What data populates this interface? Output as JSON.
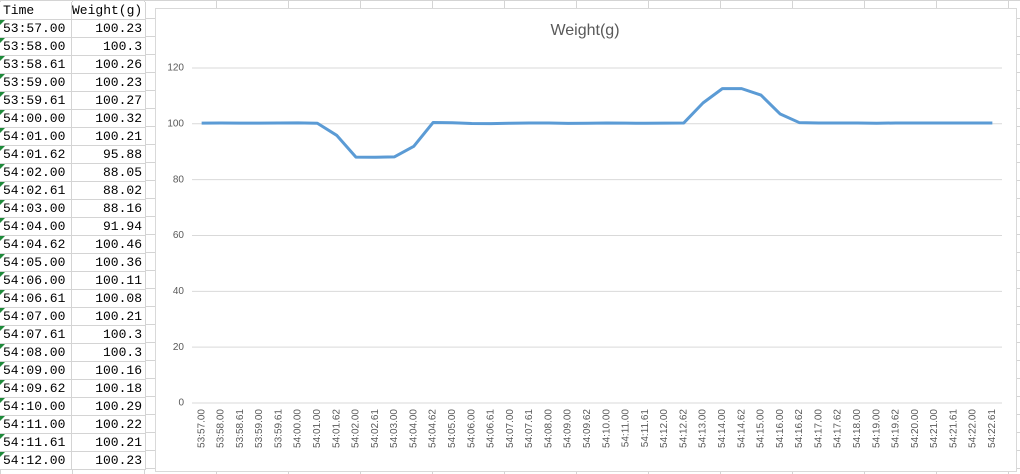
{
  "table": {
    "columns": [
      "Time",
      "Weight(g)"
    ],
    "rows": [
      [
        "53:57.00",
        "100.23"
      ],
      [
        "53:58.00",
        "100.3"
      ],
      [
        "53:58.61",
        "100.26"
      ],
      [
        "53:59.00",
        "100.23"
      ],
      [
        "53:59.61",
        "100.27"
      ],
      [
        "54:00.00",
        "100.32"
      ],
      [
        "54:01.00",
        "100.21"
      ],
      [
        "54:01.62",
        "95.88"
      ],
      [
        "54:02.00",
        "88.05"
      ],
      [
        "54:02.61",
        "88.02"
      ],
      [
        "54:03.00",
        "88.16"
      ],
      [
        "54:04.00",
        "91.94"
      ],
      [
        "54:04.62",
        "100.46"
      ],
      [
        "54:05.00",
        "100.36"
      ],
      [
        "54:06.00",
        "100.11"
      ],
      [
        "54:06.61",
        "100.08"
      ],
      [
        "54:07.00",
        "100.21"
      ],
      [
        "54:07.61",
        "100.3"
      ],
      [
        "54:08.00",
        "100.3"
      ],
      [
        "54:09.00",
        "100.16"
      ],
      [
        "54:09.62",
        "100.18"
      ],
      [
        "54:10.00",
        "100.29"
      ],
      [
        "54:11.00",
        "100.22"
      ],
      [
        "54:11.61",
        "100.21"
      ],
      [
        "54:12.00",
        "100.23"
      ]
    ]
  },
  "chart_data": {
    "type": "line",
    "title": "Weight(g)",
    "categories": [
      "53:57.00",
      "53:58.00",
      "53:58.61",
      "53:59.00",
      "53:59.61",
      "54:00.00",
      "54:01.00",
      "54:01.62",
      "54:02.00",
      "54:02.61",
      "54:03.00",
      "54:04.00",
      "54:04.62",
      "54:05.00",
      "54:06.00",
      "54:06.61",
      "54:07.00",
      "54:07.61",
      "54:08.00",
      "54:09.00",
      "54:09.62",
      "54:10.00",
      "54:11.00",
      "54:11.61",
      "54:12.00",
      "54:12.62",
      "54:13.00",
      "54:14.00",
      "54:14.62",
      "54:15.00",
      "54:16.00",
      "54:16.62",
      "54:17.00",
      "54:17.62",
      "54:18.00",
      "54:19.00",
      "54:19.62",
      "54:20.00",
      "54:21.00",
      "54:21.61",
      "54:22.00",
      "54:22.61"
    ],
    "values": [
      100.23,
      100.3,
      100.26,
      100.23,
      100.27,
      100.32,
      100.21,
      95.88,
      88.05,
      88.02,
      88.16,
      91.94,
      100.46,
      100.36,
      100.11,
      100.08,
      100.21,
      100.3,
      100.3,
      100.16,
      100.18,
      100.29,
      100.22,
      100.21,
      100.23,
      100.3,
      107.5,
      112.6,
      112.6,
      110.3,
      103.5,
      100.4,
      100.3,
      100.3,
      100.3,
      100.2,
      100.3,
      100.3,
      100.3,
      100.3,
      100.3,
      100.3
    ],
    "color": "#5b9bd5",
    "ylim": [
      0,
      125
    ],
    "yticks": [
      0,
      20,
      40,
      60,
      80,
      100,
      120
    ],
    "grid": true
  }
}
